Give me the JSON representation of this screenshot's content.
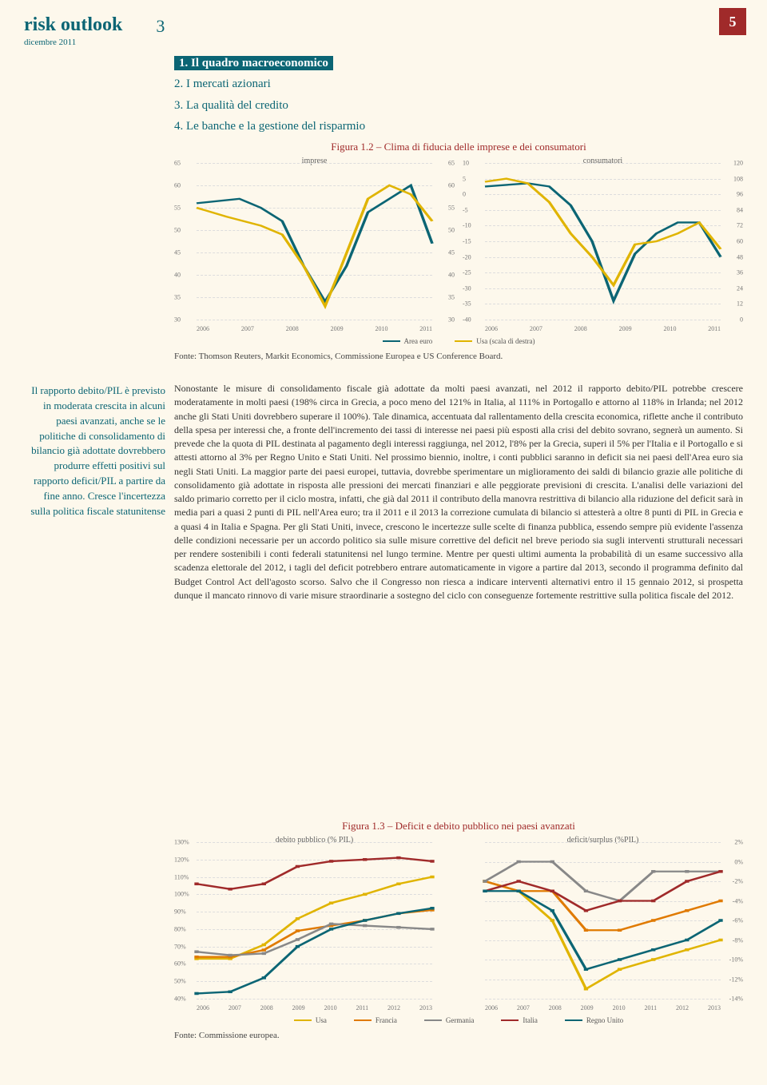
{
  "brand": "risk outlook",
  "date": "dicembre 2011",
  "page_index": "3",
  "page_number": "5",
  "toc": [
    "1. Il quadro macroeconomico",
    "2. I mercati azionari",
    "3. La qualità del credito",
    "4. Le banche e la gestione del risparmio"
  ],
  "fig12": {
    "title": "Figura 1.2 – Clima di fiducia delle imprese e dei consumatori",
    "left_sub": "imprese",
    "right_sub": "consumatori",
    "legend": [
      "Area euro",
      "Usa (scala di destra)"
    ],
    "source": "Fonte: Thomson Reuters, Markit Economics, Commissione Europea e US Conference Board.",
    "colors": {
      "area_euro": "#0b6574",
      "usa": "#e0b400"
    },
    "left_chart": {
      "x_labels": [
        "2006",
        "2007",
        "2008",
        "2009",
        "2010",
        "2011"
      ],
      "y_ticks": [
        30,
        35,
        40,
        45,
        50,
        55,
        60,
        65
      ],
      "y_ticks_right": [
        30,
        35,
        40,
        45,
        50,
        55,
        60,
        65
      ],
      "ylim": [
        30,
        65
      ],
      "series": {
        "area_euro": [
          {
            "x": 0,
            "y": 56
          },
          {
            "x": 1,
            "y": 57
          },
          {
            "x": 1.5,
            "y": 55
          },
          {
            "x": 2,
            "y": 52
          },
          {
            "x": 2.5,
            "y": 42
          },
          {
            "x": 3,
            "y": 34
          },
          {
            "x": 3.5,
            "y": 42
          },
          {
            "x": 4,
            "y": 54
          },
          {
            "x": 4.5,
            "y": 57
          },
          {
            "x": 5,
            "y": 60
          },
          {
            "x": 5.5,
            "y": 47
          }
        ],
        "usa": [
          {
            "x": 0,
            "y": 55
          },
          {
            "x": 0.7,
            "y": 53
          },
          {
            "x": 1.5,
            "y": 51
          },
          {
            "x": 2,
            "y": 49
          },
          {
            "x": 2.5,
            "y": 42
          },
          {
            "x": 3,
            "y": 33
          },
          {
            "x": 3.3,
            "y": 40
          },
          {
            "x": 4,
            "y": 57
          },
          {
            "x": 4.5,
            "y": 60
          },
          {
            "x": 5,
            "y": 58
          },
          {
            "x": 5.5,
            "y": 52
          }
        ]
      }
    },
    "right_chart": {
      "x_labels": [
        "2006",
        "2007",
        "2008",
        "2009",
        "2010",
        "2011"
      ],
      "y_ticks_left": [
        -40,
        -35,
        -30,
        -25,
        -20,
        -15,
        -10,
        -5,
        0,
        5,
        10
      ],
      "y_ticks_right": [
        0,
        12,
        24,
        36,
        48,
        60,
        72,
        84,
        96,
        108,
        120
      ],
      "series": {
        "area_euro": [
          {
            "x": 0,
            "y": 0.85
          },
          {
            "x": 0.5,
            "y": 0.86
          },
          {
            "x": 1,
            "y": 0.87
          },
          {
            "x": 1.5,
            "y": 0.85
          },
          {
            "x": 2,
            "y": 0.73
          },
          {
            "x": 2.5,
            "y": 0.5
          },
          {
            "x": 3,
            "y": 0.12
          },
          {
            "x": 3.5,
            "y": 0.42
          },
          {
            "x": 4,
            "y": 0.55
          },
          {
            "x": 4.5,
            "y": 0.62
          },
          {
            "x": 5,
            "y": 0.62
          },
          {
            "x": 5.5,
            "y": 0.4
          }
        ],
        "usa": [
          {
            "x": 0,
            "y": 0.88
          },
          {
            "x": 0.5,
            "y": 0.9
          },
          {
            "x": 1,
            "y": 0.87
          },
          {
            "x": 1.5,
            "y": 0.75
          },
          {
            "x": 2,
            "y": 0.55
          },
          {
            "x": 2.5,
            "y": 0.4
          },
          {
            "x": 3,
            "y": 0.22
          },
          {
            "x": 3.5,
            "y": 0.48
          },
          {
            "x": 4,
            "y": 0.5
          },
          {
            "x": 4.5,
            "y": 0.55
          },
          {
            "x": 5,
            "y": 0.62
          },
          {
            "x": 5.5,
            "y": 0.45
          }
        ]
      }
    }
  },
  "aside": "Il rapporto debito/PIL è previsto in moderata crescita in alcuni paesi avanzati, anche se le politiche di consolidamento di bilancio già adottate dovrebbero produrre effetti positivi sul rapporto deficit/PIL a partire da fine anno. Cresce l'incertezza sulla politica fiscale statunitense",
  "body": "Nonostante le misure di consolidamento fiscale già adottate da molti paesi avanzati, nel 2012 il rapporto debito/PIL potrebbe crescere moderatamente in molti paesi (198% circa in Grecia, a poco meno del 121% in Italia, al 111% in Portogallo e attorno al 118% in Irlanda; nel 2012 anche gli Stati Uniti dovrebbero superare il 100%). Tale dinamica, accentuata dal rallentamento della crescita economica, riflette anche il contributo della spesa per interessi che, a fronte dell'incremento dei tassi di interesse nei paesi più esposti alla crisi del debito sovrano, segnerà un aumento. Si prevede che la quota di PIL destinata al pagamento degli interessi raggiunga, nel 2012, l'8% per la Grecia, superi il 5% per l'Italia e il Portogallo e si attesti attorno al 3% per Regno Unito e Stati Uniti. Nel prossimo biennio, inoltre, i conti pubblici saranno in deficit sia nei paesi dell'Area euro sia negli Stati Uniti. La maggior parte dei paesi europei, tuttavia, dovrebbe sperimentare un miglioramento dei saldi di bilancio grazie alle politiche di consolidamento già adottate in risposta alle pressioni dei mercati finanziari e alle peggiorate previsioni di crescita. L'analisi delle variazioni del saldo primario corretto per il ciclo mostra, infatti, che già dal 2011 il contributo della manovra restrittiva di bilancio alla riduzione del deficit sarà in media pari a quasi 2 punti di PIL nell'Area euro; tra il 2011 e il 2013 la correzione cumulata di bilancio si attesterà a oltre 8 punti di PIL in Grecia e a quasi 4 in Italia e Spagna. Per gli Stati Uniti, invece, crescono le incertezze sulle scelte di finanza pubblica, essendo sempre più evidente l'assenza delle condizioni necessarie per un accordo politico sia sulle misure correttive del deficit nel breve periodo sia sugli interventi strutturali necessari per rendere sostenibili i conti federali statunitensi nel lungo termine. Mentre per questi ultimi aumenta la probabilità di un esame successivo alla scadenza elettorale del 2012, i tagli del deficit potrebbero entrare automaticamente in vigore a partire dal 2013, secondo il programma definito dal Budget Control Act dell'agosto scorso. Salvo che il Congresso non riesca a indicare interventi alternativi entro il 15 gennaio 2012, si prospetta dunque il mancato rinnovo di varie misure straordinarie a sostegno del ciclo con conseguenze fortemente restrittive sulla politica fiscale del 2012.",
  "fig13": {
    "title": "Figura 1.3 – Deficit e debito pubblico nei paesi avanzati",
    "left_sub": "debito pubblico (% PIL)",
    "right_sub": "deficit/surplus (%PIL)",
    "source": "Fonte: Commissione europea.",
    "legend": [
      {
        "label": "Usa",
        "color": "#e0b400"
      },
      {
        "label": "Francia",
        "color": "#e07a00"
      },
      {
        "label": "Germania",
        "color": "#888888"
      },
      {
        "label": "Italia",
        "color": "#a02a2a"
      },
      {
        "label": "Regno Unito",
        "color": "#0b6574"
      }
    ],
    "left_chart": {
      "x_labels": [
        "2006",
        "2007",
        "2008",
        "2009",
        "2010",
        "2011",
        "2012",
        "2013"
      ],
      "y_ticks": [
        "40%",
        "50%",
        "60%",
        "70%",
        "80%",
        "90%",
        "100%",
        "110%",
        "120%",
        "130%"
      ],
      "ylim": [
        40,
        130
      ],
      "series": {
        "Usa": [
          {
            "x": 0,
            "y": 63
          },
          {
            "x": 1,
            "y": 63
          },
          {
            "x": 2,
            "y": 71
          },
          {
            "x": 3,
            "y": 86
          },
          {
            "x": 4,
            "y": 95
          },
          {
            "x": 5,
            "y": 100
          },
          {
            "x": 6,
            "y": 106
          },
          {
            "x": 7,
            "y": 110
          }
        ],
        "Francia": [
          {
            "x": 0,
            "y": 64
          },
          {
            "x": 1,
            "y": 64
          },
          {
            "x": 2,
            "y": 68
          },
          {
            "x": 3,
            "y": 79
          },
          {
            "x": 4,
            "y": 82
          },
          {
            "x": 5,
            "y": 85
          },
          {
            "x": 6,
            "y": 89
          },
          {
            "x": 7,
            "y": 91
          }
        ],
        "Germania": [
          {
            "x": 0,
            "y": 67
          },
          {
            "x": 1,
            "y": 65
          },
          {
            "x": 2,
            "y": 66
          },
          {
            "x": 3,
            "y": 74
          },
          {
            "x": 4,
            "y": 83
          },
          {
            "x": 5,
            "y": 82
          },
          {
            "x": 6,
            "y": 81
          },
          {
            "x": 7,
            "y": 80
          }
        ],
        "Italia": [
          {
            "x": 0,
            "y": 106
          },
          {
            "x": 1,
            "y": 103
          },
          {
            "x": 2,
            "y": 106
          },
          {
            "x": 3,
            "y": 116
          },
          {
            "x": 4,
            "y": 119
          },
          {
            "x": 5,
            "y": 120
          },
          {
            "x": 6,
            "y": 121
          },
          {
            "x": 7,
            "y": 119
          }
        ],
        "Regno Unito": [
          {
            "x": 0,
            "y": 43
          },
          {
            "x": 1,
            "y": 44
          },
          {
            "x": 2,
            "y": 52
          },
          {
            "x": 3,
            "y": 70
          },
          {
            "x": 4,
            "y": 80
          },
          {
            "x": 5,
            "y": 85
          },
          {
            "x": 6,
            "y": 89
          },
          {
            "x": 7,
            "y": 92
          }
        ]
      },
      "markers": true
    },
    "right_chart": {
      "x_labels": [
        "2006",
        "2007",
        "2008",
        "2009",
        "2010",
        "2011",
        "2012",
        "2013"
      ],
      "y_ticks": [
        "2%",
        "0%",
        "-2%",
        "-4%",
        "-6%",
        "-8%",
        "-10%",
        "-12%",
        "-14%"
      ],
      "ylim": [
        -14,
        2
      ],
      "series": {
        "Usa": [
          {
            "x": 0,
            "y": -2
          },
          {
            "x": 1,
            "y": -3
          },
          {
            "x": 2,
            "y": -6
          },
          {
            "x": 3,
            "y": -13
          },
          {
            "x": 4,
            "y": -11
          },
          {
            "x": 5,
            "y": -10
          },
          {
            "x": 6,
            "y": -9
          },
          {
            "x": 7,
            "y": -8
          }
        ],
        "Francia": [
          {
            "x": 0,
            "y": -2
          },
          {
            "x": 1,
            "y": -3
          },
          {
            "x": 2,
            "y": -3
          },
          {
            "x": 3,
            "y": -7
          },
          {
            "x": 4,
            "y": -7
          },
          {
            "x": 5,
            "y": -6
          },
          {
            "x": 6,
            "y": -5
          },
          {
            "x": 7,
            "y": -4
          }
        ],
        "Germania": [
          {
            "x": 0,
            "y": -2
          },
          {
            "x": 1,
            "y": 0
          },
          {
            "x": 2,
            "y": 0
          },
          {
            "x": 3,
            "y": -3
          },
          {
            "x": 4,
            "y": -4
          },
          {
            "x": 5,
            "y": -1
          },
          {
            "x": 6,
            "y": -1
          },
          {
            "x": 7,
            "y": -1
          }
        ],
        "Italia": [
          {
            "x": 0,
            "y": -3
          },
          {
            "x": 1,
            "y": -2
          },
          {
            "x": 2,
            "y": -3
          },
          {
            "x": 3,
            "y": -5
          },
          {
            "x": 4,
            "y": -4
          },
          {
            "x": 5,
            "y": -4
          },
          {
            "x": 6,
            "y": -2
          },
          {
            "x": 7,
            "y": -1
          }
        ],
        "Regno Unito": [
          {
            "x": 0,
            "y": -3
          },
          {
            "x": 1,
            "y": -3
          },
          {
            "x": 2,
            "y": -5
          },
          {
            "x": 3,
            "y": -11
          },
          {
            "x": 4,
            "y": -10
          },
          {
            "x": 5,
            "y": -9
          },
          {
            "x": 6,
            "y": -8
          },
          {
            "x": 7,
            "y": -6
          }
        ]
      },
      "markers": true
    }
  }
}
